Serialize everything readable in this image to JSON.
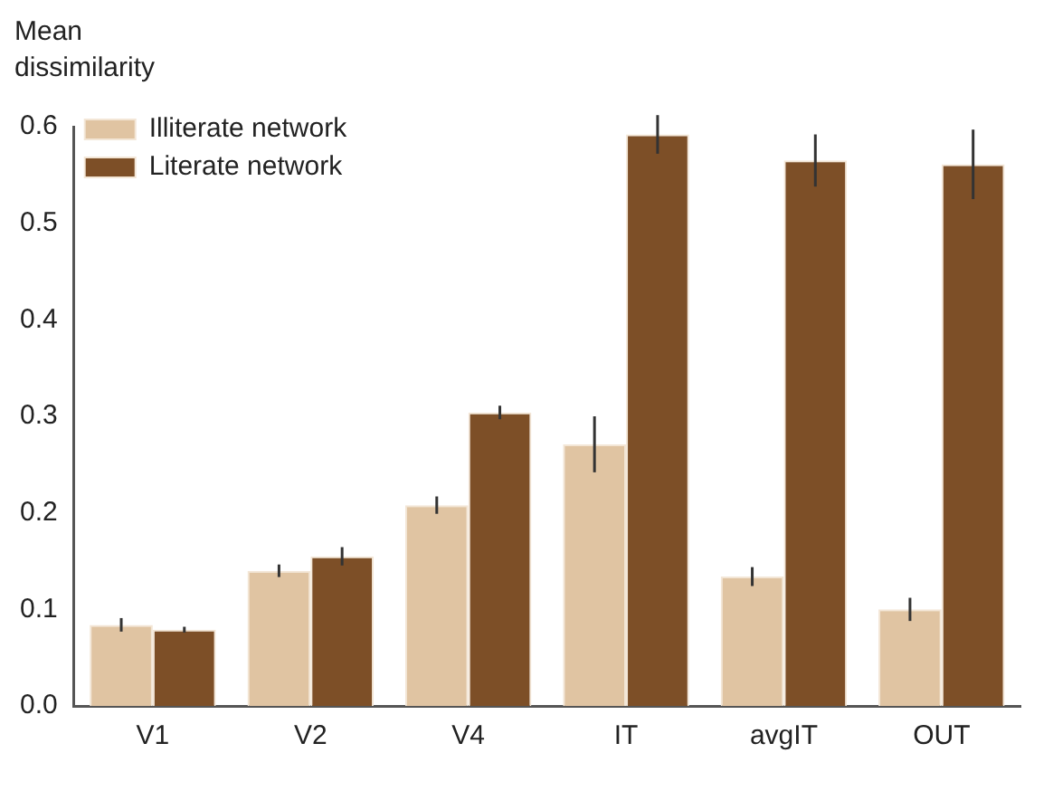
{
  "chart_data": {
    "type": "bar",
    "ylabel": "Mean\ndissimilarity",
    "categories": [
      "V1",
      "V2",
      "V4",
      "IT",
      "avgIT",
      "OUT"
    ],
    "series": [
      {
        "name": "Illiterate network",
        "color": "#e0c4a2",
        "values": [
          0.084,
          0.14,
          0.208,
          0.271,
          0.134,
          0.1
        ],
        "errors": [
          0.007,
          0.0065,
          0.009,
          0.029,
          0.0098,
          0.012
        ]
      },
      {
        "name": "Literate network",
        "color": "#7d4f27",
        "values": [
          0.079,
          0.155,
          0.304,
          0.592,
          0.565,
          0.561
        ],
        "errors": [
          0.003,
          0.0095,
          0.007,
          0.02,
          0.027,
          0.036
        ]
      }
    ],
    "ylim": [
      0,
      0.6
    ],
    "yticks": [
      {
        "value": 0,
        "label": "0.0"
      },
      0.1,
      0.2,
      0.3,
      0.4,
      0.5,
      0.6
    ],
    "grid": false,
    "legend": "top left"
  }
}
